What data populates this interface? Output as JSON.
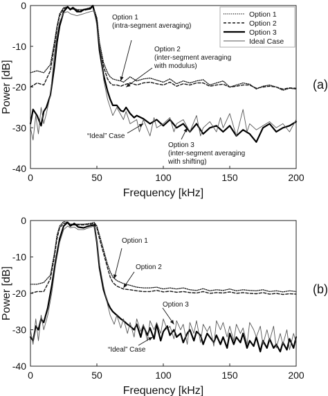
{
  "chart_data": [
    {
      "type": "line",
      "panel_label": "(a)",
      "xlabel": "Frequency [kHz]",
      "ylabel": "Power [dB]",
      "xlim": [
        0,
        200
      ],
      "ylim": [
        -40,
        0
      ],
      "xticks": [
        0,
        50,
        100,
        150,
        200
      ],
      "yticks": [
        0,
        -10,
        -20,
        -30,
        -40
      ],
      "grid": false,
      "legend": {
        "position": "top-right",
        "entries": [
          "Option 1",
          "Option 2",
          "Option 3",
          "Ideal Case"
        ]
      },
      "series": [
        {
          "name": "Option 1",
          "style": "dotted",
          "x": [
            0,
            5,
            10,
            15,
            18,
            20,
            22,
            25,
            28,
            30,
            32,
            35,
            40,
            45,
            47,
            50,
            52,
            55,
            58,
            60,
            62,
            65,
            68,
            70,
            75,
            80,
            85,
            90,
            95,
            100,
            105,
            110,
            115,
            120,
            125,
            130,
            135,
            140,
            145,
            150,
            155,
            160,
            165,
            170,
            175,
            180,
            185,
            190,
            195,
            200
          ],
          "y": [
            -16.5,
            -16,
            -16.5,
            -14.5,
            -9,
            -5,
            -2,
            -0.5,
            -0.3,
            -0.8,
            -0.5,
            -1,
            -1,
            -0.5,
            0,
            -3,
            -9,
            -14,
            -16.5,
            -17.5,
            -18,
            -18.3,
            -18.5,
            -18.8,
            -17.5,
            -18.5,
            -18,
            -17.8,
            -18.3,
            -18.8,
            -18,
            -19.2,
            -18.5,
            -19,
            -18.5,
            -18.2,
            -19.5,
            -19,
            -18.5,
            -20,
            -19.5,
            -19,
            -19.3,
            -20.5,
            -19.8,
            -19.5,
            -20,
            -20.8,
            -20.3,
            -20.5
          ]
        },
        {
          "name": "Option 2",
          "style": "dashed",
          "x": [
            0,
            5,
            10,
            15,
            18,
            20,
            22,
            25,
            28,
            30,
            32,
            35,
            40,
            45,
            47,
            50,
            52,
            55,
            58,
            60,
            62,
            65,
            68,
            70,
            75,
            80,
            85,
            90,
            95,
            100,
            105,
            110,
            115,
            120,
            125,
            130,
            135,
            140,
            145,
            150,
            155,
            160,
            165,
            170,
            175,
            180,
            185,
            190,
            195,
            200
          ],
          "y": [
            -20,
            -19,
            -19.5,
            -16,
            -10,
            -5.5,
            -2.5,
            -0.8,
            -0.5,
            -1,
            -0.8,
            -1.2,
            -1.2,
            -0.8,
            -0.3,
            -3.5,
            -10,
            -15,
            -18,
            -19,
            -19.5,
            -19.5,
            -19.8,
            -19.5,
            -19,
            -19.5,
            -19,
            -18.8,
            -19.2,
            -19.5,
            -18.8,
            -19.8,
            -19.2,
            -19.5,
            -19,
            -19,
            -19.8,
            -19.5,
            -19.3,
            -20,
            -19.8,
            -19.5,
            -19.5,
            -20.3,
            -20,
            -19.8,
            -20,
            -20.5,
            -20.2,
            -20.3
          ]
        },
        {
          "name": "Option 3",
          "style": "thick",
          "x": [
            0,
            2,
            5,
            8,
            10,
            12,
            15,
            18,
            20,
            22,
            25,
            28,
            30,
            32,
            35,
            38,
            40,
            45,
            47,
            50,
            52,
            55,
            58,
            60,
            62,
            65,
            68,
            70,
            72,
            75,
            78,
            80,
            85,
            90,
            95,
            100,
            105,
            110,
            115,
            120,
            125,
            130,
            135,
            140,
            145,
            150,
            155,
            160,
            165,
            170,
            175,
            180,
            185,
            190,
            195,
            200
          ],
          "y": [
            -29,
            -25.5,
            -27,
            -29.5,
            -26,
            -25,
            -22,
            -15,
            -9,
            -5,
            -1.5,
            -0.3,
            -1,
            -0.5,
            -1.5,
            -1.5,
            -1,
            -0.8,
            0,
            -4,
            -11,
            -17,
            -21,
            -23,
            -24.5,
            -24.5,
            -25.8,
            -26,
            -25,
            -26.5,
            -27.5,
            -27,
            -27.8,
            -29,
            -28,
            -29.5,
            -28,
            -30,
            -29,
            -31,
            -29,
            -31.5,
            -30,
            -29.5,
            -31,
            -29.5,
            -32,
            -30.5,
            -31.5,
            -33.5,
            -30,
            -29,
            -31,
            -30,
            -29.5,
            -28.5
          ]
        },
        {
          "name": "Ideal Case",
          "style": "thin",
          "x": [
            0,
            2,
            4,
            6,
            8,
            10,
            12,
            15,
            18,
            20,
            22,
            25,
            28,
            30,
            35,
            40,
            45,
            48,
            50,
            53,
            55,
            58,
            60,
            62,
            65,
            70,
            72,
            75,
            80,
            82,
            85,
            90,
            93,
            95,
            100,
            105,
            108,
            110,
            115,
            120,
            125,
            128,
            130,
            135,
            140,
            143,
            145,
            150,
            155,
            160,
            163,
            165,
            170,
            175,
            180,
            185,
            190,
            195,
            200
          ],
          "y": [
            -30,
            -33,
            -27,
            -31.5,
            -25,
            -29,
            -26.5,
            -22,
            -12,
            -7,
            -4,
            -1.8,
            -1.5,
            -2,
            -2.5,
            -2,
            -1.5,
            -1.3,
            -5,
            -12,
            -18,
            -23,
            -25,
            -27,
            -25,
            -28,
            -26,
            -29,
            -28,
            -31,
            -28,
            -32,
            -27.5,
            -30,
            -29,
            -27.5,
            -31,
            -29,
            -28,
            -31,
            -27,
            -32,
            -30,
            -28.5,
            -31,
            -27.5,
            -30,
            -26.5,
            -32,
            -25.5,
            -31,
            -29,
            -30.5,
            -29.5,
            -28.5,
            -30,
            -29,
            -31,
            -28
          ]
        }
      ],
      "annotations": [
        {
          "lines": [
            "Option 1",
            "(intra-segment averaging)"
          ],
          "points_to": [
            68,
            -18.5
          ]
        },
        {
          "lines": [
            "Option 2",
            "(inter-segment averaging",
            "with modulus)"
          ],
          "points_to": [
            72,
            -20
          ]
        },
        {
          "lines": [
            "“Ideal” Case"
          ],
          "points_to": [
            85,
            -29
          ]
        },
        {
          "lines": [
            "Option 3",
            "(inter-segment averaging",
            "with shifting)"
          ],
          "points_to": [
            118,
            -30
          ]
        }
      ]
    },
    {
      "type": "line",
      "panel_label": "(b)",
      "xlabel": "Frequency [kHz]",
      "ylabel": "Power [dB]",
      "xlim": [
        0,
        200
      ],
      "ylim": [
        -40,
        0
      ],
      "xticks": [
        0,
        50,
        100,
        150,
        200
      ],
      "yticks": [
        0,
        -10,
        -20,
        -30,
        -40
      ],
      "grid": false,
      "series": [
        {
          "name": "Option 1",
          "style": "dotted",
          "x": [
            0,
            5,
            10,
            15,
            18,
            20,
            22,
            25,
            28,
            30,
            35,
            40,
            45,
            48,
            50,
            52,
            55,
            58,
            60,
            62,
            65,
            68,
            70,
            75,
            80,
            85,
            90,
            95,
            100,
            105,
            110,
            115,
            120,
            125,
            130,
            135,
            140,
            145,
            150,
            155,
            160,
            165,
            170,
            175,
            180,
            185,
            190,
            195,
            200
          ],
          "y": [
            -17.5,
            -17.5,
            -17,
            -15,
            -9,
            -4,
            -1.5,
            -0.3,
            -0.5,
            -1,
            -1,
            -1,
            -0.8,
            -0.5,
            -1.5,
            -4,
            -8,
            -12,
            -14,
            -15.5,
            -16.5,
            -17,
            -17.3,
            -17.8,
            -18.3,
            -18.5,
            -18.5,
            -18.3,
            -18.8,
            -18.5,
            -18.8,
            -18.5,
            -19,
            -19.2,
            -18.7,
            -19.3,
            -19,
            -19.2,
            -18.8,
            -19.3,
            -19,
            -19.2,
            -19.3,
            -19,
            -19.5,
            -19.3,
            -19.6,
            -19.3,
            -19.5
          ]
        },
        {
          "name": "Option 2",
          "style": "dashed",
          "x": [
            0,
            5,
            10,
            15,
            18,
            20,
            22,
            25,
            28,
            30,
            35,
            40,
            45,
            48,
            50,
            52,
            55,
            58,
            60,
            62,
            65,
            68,
            70,
            75,
            80,
            85,
            90,
            95,
            100,
            105,
            110,
            115,
            120,
            125,
            130,
            135,
            140,
            145,
            150,
            155,
            160,
            165,
            170,
            175,
            180,
            185,
            190,
            195,
            200
          ],
          "y": [
            -20,
            -19.5,
            -19.5,
            -16,
            -10,
            -5,
            -2,
            -0.8,
            -0.8,
            -1.2,
            -1.2,
            -1.2,
            -1,
            -0.8,
            -2,
            -5,
            -9,
            -13,
            -15.5,
            -17,
            -18,
            -18.5,
            -18.8,
            -19,
            -19.3,
            -19.5,
            -19.5,
            -19.2,
            -19.6,
            -19.4,
            -19.7,
            -19.5,
            -19.8,
            -19.9,
            -19.5,
            -20,
            -19.8,
            -19.9,
            -19.6,
            -20,
            -19.8,
            -20,
            -20.1,
            -19.8,
            -20.2,
            -20,
            -20.3,
            -20.1,
            -20.2
          ]
        },
        {
          "name": "Option 3",
          "style": "thick",
          "x": [
            0,
            2,
            4,
            6,
            8,
            10,
            13,
            16,
            19,
            22,
            25,
            28,
            30,
            33,
            36,
            40,
            44,
            48,
            50,
            52,
            55,
            58,
            60,
            62,
            65,
            68,
            70,
            73,
            75,
            78,
            80,
            83,
            85,
            88,
            90,
            93,
            95,
            98,
            100,
            103,
            105,
            108,
            110,
            113,
            115,
            118,
            120,
            123,
            125,
            128,
            130,
            133,
            135,
            138,
            140,
            143,
            145,
            148,
            150,
            153,
            155,
            158,
            160,
            163,
            165,
            168,
            170,
            173,
            175,
            178,
            180,
            183,
            185,
            188,
            190,
            193,
            195,
            198,
            200
          ],
          "y": [
            -32,
            -33,
            -29,
            -30,
            -27,
            -28,
            -24,
            -18,
            -11,
            -5,
            -1.5,
            -0.5,
            -1.5,
            -0.8,
            -1.8,
            -2,
            -1.5,
            -1.2,
            -6,
            -13,
            -19,
            -22.5,
            -24,
            -25,
            -26,
            -27,
            -27.5,
            -28.5,
            -29,
            -30,
            -28.5,
            -32,
            -29,
            -31.5,
            -29.5,
            -32.5,
            -28.5,
            -33,
            -30.5,
            -29,
            -31.5,
            -30,
            -32,
            -31,
            -33.5,
            -31,
            -30,
            -33,
            -30.5,
            -31.5,
            -34,
            -31,
            -32,
            -33.5,
            -31.5,
            -34,
            -32,
            -35,
            -31,
            -34,
            -32,
            -33.5,
            -31,
            -35,
            -33,
            -34.5,
            -32,
            -36,
            -33,
            -35,
            -32.5,
            -35,
            -34,
            -36,
            -33.5,
            -35.5,
            -32.5,
            -35,
            -32
          ]
        },
        {
          "name": "Ideal Case",
          "style": "thin",
          "x": [
            0,
            2,
            4,
            6,
            8,
            10,
            13,
            16,
            19,
            22,
            25,
            28,
            30,
            33,
            36,
            40,
            44,
            48,
            50,
            52,
            55,
            58,
            60,
            63,
            65,
            68,
            70,
            73,
            75,
            78,
            80,
            83,
            85,
            88,
            90,
            93,
            95,
            98,
            100,
            103,
            105,
            108,
            110,
            113,
            115,
            118,
            120,
            123,
            125,
            128,
            130,
            133,
            135,
            138,
            140,
            143,
            145,
            148,
            150,
            153,
            155,
            158,
            160,
            163,
            165,
            168,
            170,
            173,
            175,
            178,
            180,
            183,
            185,
            188,
            190,
            193,
            195,
            198,
            200
          ],
          "y": [
            -30,
            -34,
            -27,
            -33,
            -26,
            -30,
            -26,
            -20,
            -12,
            -6,
            -2.5,
            -1.5,
            -2,
            -1.8,
            -2.5,
            -2.5,
            -2,
            -1.5,
            -6,
            -12,
            -18,
            -23,
            -26,
            -28.5,
            -26,
            -29.5,
            -27,
            -31,
            -28,
            -32,
            -27,
            -30.5,
            -28.5,
            -33,
            -27.5,
            -30,
            -28,
            -31,
            -27,
            -30,
            -29,
            -32.5,
            -27.5,
            -30,
            -28.5,
            -34,
            -28,
            -31,
            -27.5,
            -33.5,
            -28.5,
            -30.5,
            -29,
            -34.5,
            -27.5,
            -30,
            -28,
            -32,
            -29,
            -33,
            -28.5,
            -31,
            -29.5,
            -34,
            -28,
            -30,
            -32,
            -29,
            -34,
            -30,
            -33,
            -29,
            -35,
            -31,
            -34,
            -30,
            -35.5,
            -31,
            -33.5
          ]
        }
      ],
      "annotations": [
        {
          "lines": [
            "Option 1"
          ],
          "points_to": [
            63,
            -16
          ]
        },
        {
          "lines": [
            "Option 2"
          ],
          "points_to": [
            70,
            -18.5
          ]
        },
        {
          "lines": [
            "Option 3"
          ],
          "points_to": [
            108,
            -28.5
          ]
        },
        {
          "lines": [
            "“Ideal” Case"
          ],
          "points_to": [
            92,
            -32
          ]
        }
      ]
    }
  ]
}
